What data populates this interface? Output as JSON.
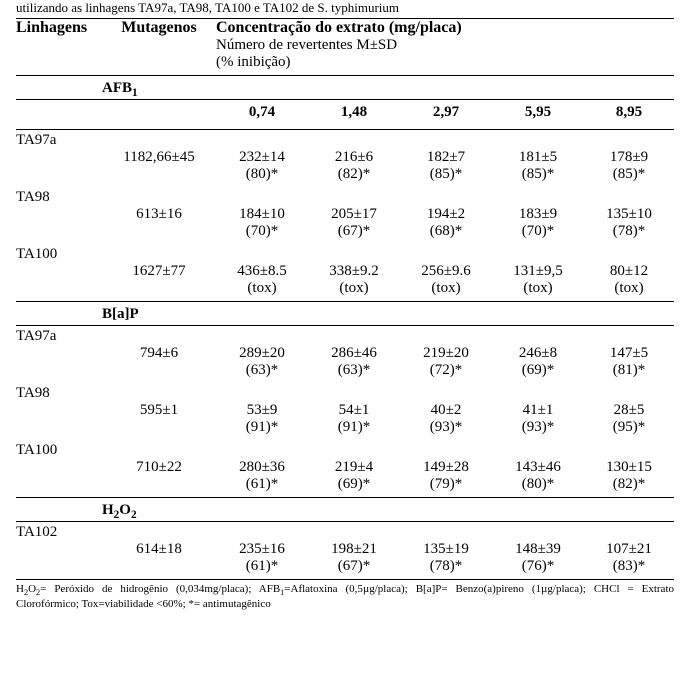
{
  "caption": "utilizando as linhagens TA97a, TA98, TA100 e TA102 de S. typhimurium",
  "header": {
    "strains": "Linhagens",
    "mutagens": "Mutagenos",
    "conc": "Concentração do extrato (mg/placa)",
    "sub1": "Número de revertentes M±SD",
    "sub2": "(% inibição)"
  },
  "conc_labels": [
    "0,74",
    "1,48",
    "2,97",
    "5,95",
    "8,95"
  ],
  "sections": [
    {
      "mutagen_html": "AFB<sub>1</sub>",
      "show_conc_header": true,
      "rows": [
        {
          "strain": "TA97a",
          "mut": "1182,66±45",
          "vals": [
            "232±14",
            "216±6",
            "182±7",
            "181±5",
            "178±9"
          ],
          "pcts": [
            "(80)*",
            "(82)*",
            "(85)*",
            "(85)*",
            "(85)*"
          ]
        },
        {
          "strain": "TA98",
          "mut": "613±16",
          "vals": [
            "184±10",
            "205±17",
            "194±2",
            "183±9",
            "135±10"
          ],
          "pcts": [
            "(70)*",
            "(67)*",
            "(68)*",
            "(70)*",
            "(78)*"
          ]
        },
        {
          "strain": "TA100",
          "mut": "1627±77",
          "vals": [
            "436±8.5",
            "338±9.2",
            "256±9.6",
            "131±9,5",
            "80±12"
          ],
          "pcts": [
            "(tox)",
            "(tox)",
            "(tox)",
            "(tox)",
            "(tox)"
          ]
        }
      ]
    },
    {
      "mutagen_html": "B[a]P",
      "show_conc_header": false,
      "rows": [
        {
          "strain": "TA97a",
          "mut": "794±6",
          "vals": [
            "289±20",
            "286±46",
            "219±20",
            "246±8",
            "147±5"
          ],
          "pcts": [
            "(63)*",
            "(63)*",
            "(72)*",
            "(69)*",
            "(81)*"
          ]
        },
        {
          "strain": "TA98",
          "mut": "595±1",
          "vals": [
            "53±9",
            "54±1",
            "40±2",
            "41±1",
            "28±5"
          ],
          "pcts": [
            "(91)*",
            "(91)*",
            "(93)*",
            "(93)*",
            "(95)*"
          ]
        },
        {
          "strain": "TA100",
          "mut": "710±22",
          "vals": [
            "280±36",
            "219±4",
            "149±28",
            "143±46",
            "130±15"
          ],
          "pcts": [
            "(61)*",
            "(69)*",
            "(79)*",
            "(80)*",
            "(82)*"
          ]
        }
      ]
    },
    {
      "mutagen_html": "H<sub>2</sub>O<sub>2</sub>",
      "show_conc_header": false,
      "rows": [
        {
          "strain": "TA102",
          "mut": "614±18",
          "vals": [
            "235±16",
            "198±21",
            "135±19",
            "148±39",
            "107±21"
          ],
          "pcts": [
            "(61)*",
            "(67)*",
            "(78)*",
            "(76)*",
            "(83)*"
          ]
        }
      ]
    }
  ],
  "footnote_html": "H<sub>2</sub>O<sub>2</sub>= Peróxido de hidrogênio (0,034mg/placa); AFB<sub>1</sub>=Aflatoxina (0,5µg/placa); B[a]P= Benzo(a)pireno (1µg/placa); CHCl = Extrato Clorofórmico; Tox=viabilidade &lt;60%; *= antimutagênico"
}
